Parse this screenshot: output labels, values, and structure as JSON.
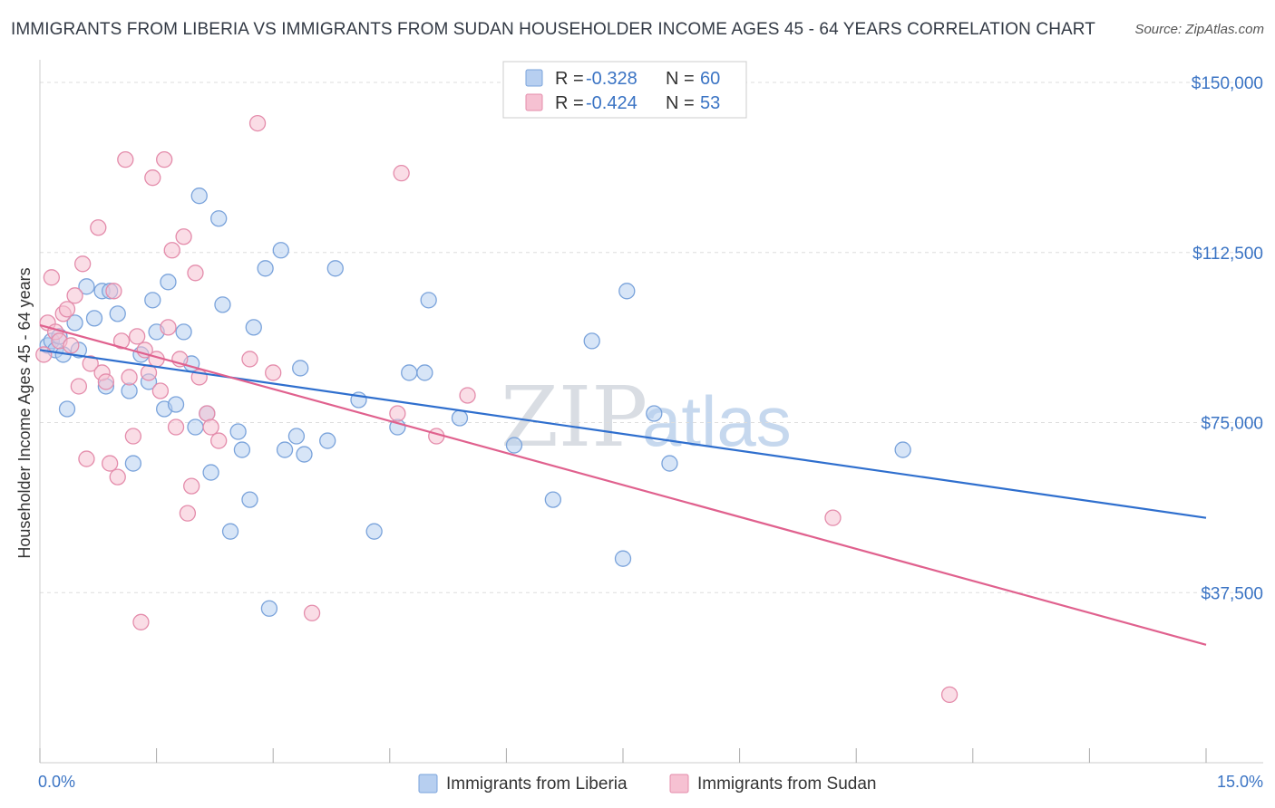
{
  "title": "IMMIGRANTS FROM LIBERIA VS IMMIGRANTS FROM SUDAN HOUSEHOLDER INCOME AGES 45 - 64 YEARS CORRELATION CHART",
  "source": "Source: ZipAtlas.com",
  "watermark": {
    "zip": "ZIP",
    "atlas": "atlas"
  },
  "legend": {
    "r_label": "R =",
    "n_label": "N =",
    "rows": [
      {
        "r": "-0.328",
        "n": "60"
      },
      {
        "r": "-0.424",
        "n": "53"
      }
    ]
  },
  "colors": {
    "liberia_fill": "#b7cff0",
    "liberia_stroke": "#7aa3db",
    "liberia_line": "#2f6fce",
    "sudan_fill": "#f6c1d2",
    "sudan_stroke": "#e48cab",
    "sudan_line": "#e0618e",
    "grid": "#dddddd"
  },
  "chart_data": {
    "type": "scatter",
    "title": "IMMIGRANTS FROM LIBERIA VS IMMIGRANTS FROM SUDAN HOUSEHOLDER INCOME AGES 45 - 64 YEARS CORRELATION CHART",
    "xlabel": "",
    "ylabel": "Householder Income Ages 45 - 64 years",
    "xlim": [
      0,
      15
    ],
    "ylim": [
      0,
      155000
    ],
    "x_tick_labels": [
      "0.0%",
      "15.0%"
    ],
    "y_ticks": [
      {
        "value": 37500,
        "label": "$37,500"
      },
      {
        "value": 75000,
        "label": "$75,000"
      },
      {
        "value": 112500,
        "label": "$112,500"
      },
      {
        "value": 150000,
        "label": "$150,000"
      }
    ],
    "grid": true,
    "legend_position": "top-center",
    "series": [
      {
        "name": "Immigrants from Liberia",
        "trend": {
          "x": [
            0,
            15
          ],
          "y": [
            91000,
            54000
          ]
        },
        "points": [
          [
            0.1,
            92000
          ],
          [
            0.15,
            93000
          ],
          [
            0.2,
            91000
          ],
          [
            0.3,
            90000
          ],
          [
            0.35,
            78000
          ],
          [
            0.45,
            97000
          ],
          [
            0.5,
            91000
          ],
          [
            0.6,
            105000
          ],
          [
            0.7,
            98000
          ],
          [
            0.8,
            104000
          ],
          [
            0.85,
            83000
          ],
          [
            0.9,
            104000
          ],
          [
            1.0,
            99000
          ],
          [
            1.15,
            82000
          ],
          [
            1.2,
            66000
          ],
          [
            1.3,
            90000
          ],
          [
            1.4,
            84000
          ],
          [
            1.45,
            102000
          ],
          [
            1.5,
            95000
          ],
          [
            1.6,
            78000
          ],
          [
            1.65,
            106000
          ],
          [
            1.75,
            79000
          ],
          [
            1.85,
            95000
          ],
          [
            1.95,
            88000
          ],
          [
            2.0,
            74000
          ],
          [
            2.05,
            125000
          ],
          [
            2.15,
            77000
          ],
          [
            2.2,
            64000
          ],
          [
            2.3,
            120000
          ],
          [
            2.35,
            101000
          ],
          [
            2.45,
            51000
          ],
          [
            2.55,
            73000
          ],
          [
            2.6,
            69000
          ],
          [
            2.7,
            58000
          ],
          [
            2.75,
            96000
          ],
          [
            2.9,
            109000
          ],
          [
            2.95,
            34000
          ],
          [
            3.1,
            113000
          ],
          [
            3.15,
            69000
          ],
          [
            3.3,
            72000
          ],
          [
            3.35,
            87000
          ],
          [
            3.4,
            68000
          ],
          [
            3.7,
            71000
          ],
          [
            3.8,
            109000
          ],
          [
            4.1,
            80000
          ],
          [
            4.3,
            51000
          ],
          [
            4.6,
            74000
          ],
          [
            4.75,
            86000
          ],
          [
            4.95,
            86000
          ],
          [
            5.0,
            102000
          ],
          [
            5.4,
            76000
          ],
          [
            6.1,
            70000
          ],
          [
            6.6,
            58000
          ],
          [
            7.1,
            93000
          ],
          [
            7.5,
            45000
          ],
          [
            7.55,
            104000
          ],
          [
            7.9,
            77000
          ],
          [
            8.1,
            66000
          ],
          [
            11.1,
            69000
          ],
          [
            0.25,
            94000
          ]
        ]
      },
      {
        "name": "Immigrants from Sudan",
        "trend": {
          "x": [
            0,
            15
          ],
          "y": [
            96500,
            26000
          ]
        },
        "points": [
          [
            0.05,
            90000
          ],
          [
            0.1,
            97000
          ],
          [
            0.15,
            107000
          ],
          [
            0.2,
            95000
          ],
          [
            0.25,
            93000
          ],
          [
            0.3,
            99000
          ],
          [
            0.35,
            100000
          ],
          [
            0.4,
            92000
          ],
          [
            0.45,
            103000
          ],
          [
            0.5,
            83000
          ],
          [
            0.55,
            110000
          ],
          [
            0.6,
            67000
          ],
          [
            0.65,
            88000
          ],
          [
            0.75,
            118000
          ],
          [
            0.8,
            86000
          ],
          [
            0.85,
            84000
          ],
          [
            0.9,
            66000
          ],
          [
            0.95,
            104000
          ],
          [
            1.0,
            63000
          ],
          [
            1.05,
            93000
          ],
          [
            1.1,
            133000
          ],
          [
            1.15,
            85000
          ],
          [
            1.2,
            72000
          ],
          [
            1.25,
            94000
          ],
          [
            1.3,
            31000
          ],
          [
            1.35,
            91000
          ],
          [
            1.4,
            86000
          ],
          [
            1.45,
            129000
          ],
          [
            1.5,
            89000
          ],
          [
            1.55,
            82000
          ],
          [
            1.6,
            133000
          ],
          [
            1.65,
            96000
          ],
          [
            1.7,
            113000
          ],
          [
            1.75,
            74000
          ],
          [
            1.8,
            89000
          ],
          [
            1.85,
            116000
          ],
          [
            1.9,
            55000
          ],
          [
            1.95,
            61000
          ],
          [
            2.0,
            108000
          ],
          [
            2.05,
            85000
          ],
          [
            2.15,
            77000
          ],
          [
            2.2,
            74000
          ],
          [
            2.3,
            71000
          ],
          [
            2.7,
            89000
          ],
          [
            2.8,
            141000
          ],
          [
            3.0,
            86000
          ],
          [
            3.5,
            33000
          ],
          [
            4.6,
            77000
          ],
          [
            4.65,
            130000
          ],
          [
            5.1,
            72000
          ],
          [
            5.5,
            81000
          ],
          [
            10.2,
            54000
          ],
          [
            11.7,
            15000
          ]
        ]
      }
    ]
  },
  "bottom_legend": [
    {
      "label": "Immigrants from Liberia"
    },
    {
      "label": "Immigrants from Sudan"
    }
  ]
}
